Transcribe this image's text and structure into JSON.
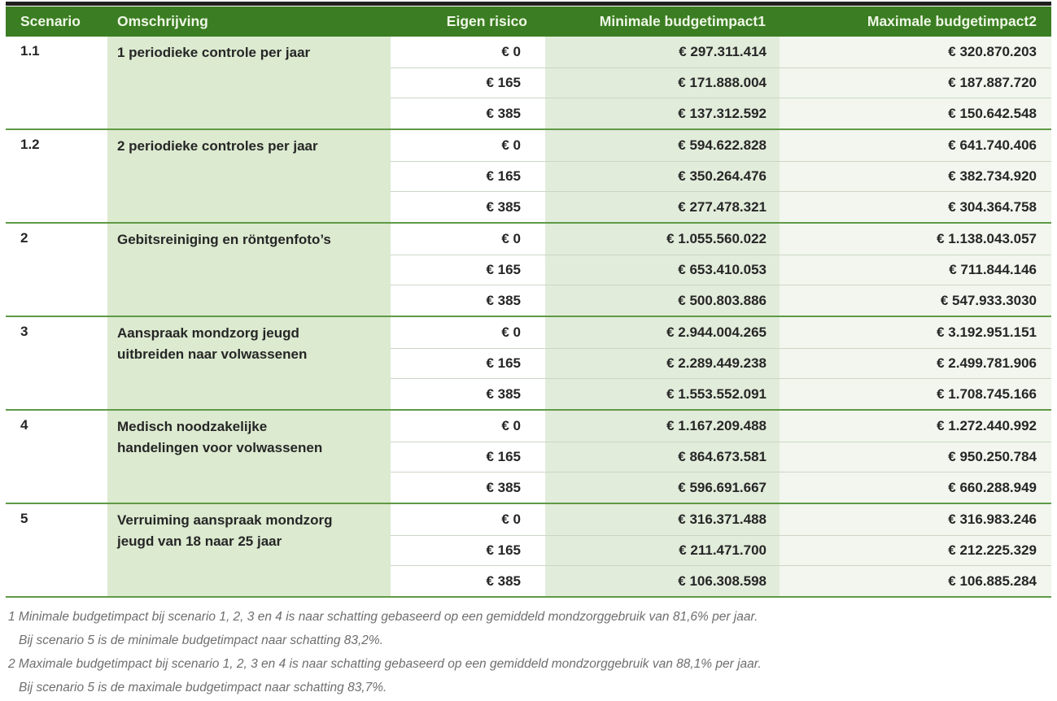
{
  "colors": {
    "topline": "#1f1f1f",
    "header_green": "#3b7d22",
    "header_text": "#eef7e6",
    "divider_green": "#5f9a46",
    "subline": "#ccd6c6",
    "shade_desc": "#dcead0",
    "shade_min": "#e2ecdb",
    "shade_max": "#f2f6ee",
    "text": "#262626",
    "footnote": "#6e6e6e"
  },
  "table": {
    "columns": {
      "scenario": "Scenario",
      "omschrijving": "Omschrijving",
      "eigen_risico": "Eigen risico",
      "minimale": "Minimale budgetimpact1",
      "maximale": "Maximale budgetimpact2"
    },
    "groups": [
      {
        "scenario": "1.1",
        "desc": "1 periodieke controle per jaar",
        "rows": [
          {
            "er": "€ 0",
            "min": "€ 297.311.414",
            "max": "€ 320.870.203"
          },
          {
            "er": "€ 165",
            "min": "€ 171.888.004",
            "max": "€ 187.887.720"
          },
          {
            "er": "€ 385",
            "min": "€ 137.312.592",
            "max": "€ 150.642.548"
          }
        ]
      },
      {
        "scenario": "1.2",
        "desc": "2 periodieke controles per jaar",
        "rows": [
          {
            "er": "€ 0",
            "min": "€ 594.622.828",
            "max": "€ 641.740.406"
          },
          {
            "er": "€ 165",
            "min": "€ 350.264.476",
            "max": "€ 382.734.920"
          },
          {
            "er": "€ 385",
            "min": "€ 277.478.321",
            "max": "€ 304.364.758"
          }
        ]
      },
      {
        "scenario": "2",
        "desc": "Gebitsreiniging en röntgenfoto’s",
        "rows": [
          {
            "er": "€ 0",
            "min": "€ 1.055.560.022",
            "max": "€ 1.138.043.057"
          },
          {
            "er": "€ 165",
            "min": "€ 653.410.053",
            "max": "€ 711.844.146"
          },
          {
            "er": "€ 385",
            "min": "€ 500.803.886",
            "max": "€ 547.933.3030"
          }
        ]
      },
      {
        "scenario": "3",
        "desc": "Aanspraak mondzorg jeugd\nuitbreiden naar volwassenen",
        "rows": [
          {
            "er": "€ 0",
            "min": "€ 2.944.004.265",
            "max": "€ 3.192.951.151"
          },
          {
            "er": "€ 165",
            "min": "€ 2.289.449.238",
            "max": "€ 2.499.781.906"
          },
          {
            "er": "€ 385",
            "min": "€ 1.553.552.091",
            "max": "€ 1.708.745.166"
          }
        ]
      },
      {
        "scenario": "4",
        "desc": "Medisch noodzakelijke\nhandelingen voor volwassenen",
        "rows": [
          {
            "er": "€ 0",
            "min": "€ 1.167.209.488",
            "max": "€ 1.272.440.992"
          },
          {
            "er": "€ 165",
            "min": "€ 864.673.581",
            "max": "€ 950.250.784"
          },
          {
            "er": "€ 385",
            "min": "€ 596.691.667",
            "max": "€ 660.288.949"
          }
        ]
      },
      {
        "scenario": "5",
        "desc": "Verruiming aanspraak mondzorg\njeugd van 18 naar 25 jaar",
        "rows": [
          {
            "er": "€ 0",
            "min": "€ 316.371.488",
            "max": "€ 316.983.246"
          },
          {
            "er": "€ 165",
            "min": "€ 211.471.700",
            "max": "€ 212.225.329"
          },
          {
            "er": "€ 385",
            "min": "€ 106.308.598",
            "max": "€ 106.885.284"
          }
        ]
      }
    ]
  },
  "footnote_lines": [
    "1 Minimale budgetimpact bij scenario 1, 2, 3 en 4 is naar schatting gebaseerd op een gemiddeld mondzorggebruik van 81,6% per jaar.",
    "Bij scenario 5 is de minimale budgetimpact naar schatting 83,2%.",
    "2 Maximale budgetimpact bij scenario 1, 2, 3 en 4 is naar schatting gebaseerd op een gemiddeld mondzorggebruik van 88,1% per jaar.",
    "Bij scenario 5 is de maximale budgetimpact naar schatting 83,7%."
  ]
}
